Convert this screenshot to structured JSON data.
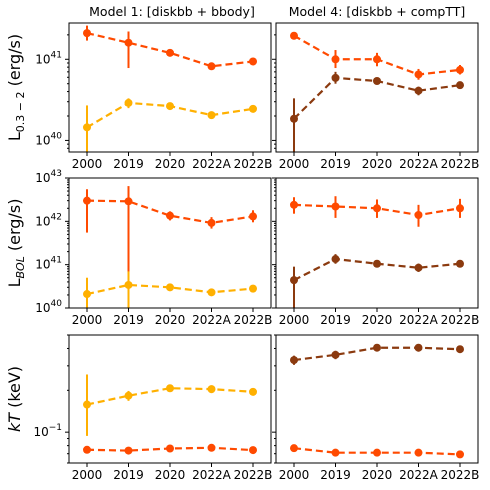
{
  "chart_data": {
    "type": "line",
    "categories": [
      "2000",
      "2019",
      "2020",
      "2022A",
      "2022B"
    ],
    "columns": [
      {
        "title": "Model 1: [diskbb + bbody]"
      },
      {
        "title": "Model 4: [diskbb + compTT]"
      }
    ],
    "rows": [
      {
        "ylabel_parts": {
          "main": "L",
          "sub": "0.3 − 2",
          "unit": " (erg/s)"
        },
        "scale": "log",
        "ylim": [
          7.2e+39,
          2.8e+41
        ],
        "ticks": [
          {
            "value": 1e+40,
            "base": "10",
            "exp": "40"
          },
          {
            "value": 1e+41,
            "base": "10",
            "exp": "41"
          }
        ]
      },
      {
        "ylabel_parts": {
          "main": "L",
          "sub": "BOL",
          "unit": " (erg/s)"
        },
        "scale": "log",
        "ylim": [
          1e+40,
          1e+43
        ],
        "ticks": [
          {
            "value": 1e+40,
            "base": "10",
            "exp": "40"
          },
          {
            "value": 1e+41,
            "base": "10",
            "exp": "41"
          },
          {
            "value": 1e+42,
            "base": "10",
            "exp": "42"
          },
          {
            "value": 1e+43,
            "base": "10",
            "exp": "43"
          }
        ]
      },
      {
        "ylabel_parts": {
          "main": "kT",
          "sub": "",
          "unit": " (keV)"
        },
        "scale": "log",
        "ylim": [
          0.06,
          0.5
        ],
        "ticks": [
          {
            "value": 0.1,
            "base": "10",
            "exp": "−1"
          }
        ]
      }
    ],
    "panels": [
      {
        "row": 0,
        "col": 0,
        "series": [
          {
            "color": "#ff4a00",
            "values": [
              2.1e+41,
              1.6e+41,
              1.2e+41,
              8.2e+40,
              9.4e+40
            ],
            "err_low": [
              1.7e+41,
              7.8e+40,
              1.1e+41,
              7.7e+40,
              8.8e+40
            ],
            "err_high": [
              2.6e+41,
              2.2e+41,
              1.3e+41,
              8.7e+40,
              1e+41
            ]
          },
          {
            "color": "#ffb000",
            "values": [
              1.45e+40,
              2.9e+40,
              2.65e+40,
              2.05e+40,
              2.45e+40
            ],
            "err_low": [
              7e+39,
              2.5e+40,
              2.55e+40,
              1.9e+40,
              2.35e+40
            ],
            "err_high": [
              2.7e+40,
              3.3e+40,
              2.75e+40,
              2.2e+40,
              2.55e+40
            ]
          }
        ]
      },
      {
        "row": 0,
        "col": 1,
        "series": [
          {
            "color": "#ff4a00",
            "values": [
              1.95e+41,
              1e+41,
              1e+41,
              6.5e+40,
              7.4e+40
            ],
            "err_low": [
              1.75e+41,
              7.8e+40,
              8.2e+40,
              5.6e+40,
              6.5e+40
            ],
            "err_high": [
              2.15e+41,
              1.3e+41,
              1.2e+41,
              7.6e+40,
              8.5e+40
            ]
          },
          {
            "color": "#8b3a0f",
            "values": [
              1.85e+40,
              5.9e+40,
              5.4e+40,
              4.1e+40,
              4.8e+40
            ],
            "err_low": [
              7e+39,
              5e+40,
              5e+40,
              3.6e+40,
              4.4e+40
            ],
            "err_high": [
              3.3e+40,
              7e+40,
              5.8e+40,
              4.6e+40,
              5.2e+40
            ]
          }
        ]
      },
      {
        "row": 1,
        "col": 0,
        "series": [
          {
            "color": "#ff4a00",
            "values": [
              3e+42,
              2.9e+42,
              1.35e+42,
              9.2e+41,
              1.3e+42
            ],
            "err_low": [
              5.5e+41,
              1e+40,
              1.05e+42,
              6.8e+41,
              9.5e+41
            ],
            "err_high": [
              5.5e+42,
              6.5e+42,
              1.7e+42,
              1.25e+42,
              1.8e+42
            ]
          },
          {
            "color": "#ffb000",
            "values": [
              2.1e+40,
              3.4e+40,
              3e+40,
              2.3e+40,
              2.8e+40
            ],
            "err_low": [
              1e+40,
              1e+40,
              2.7e+40,
              2.1e+40,
              2.5e+40
            ],
            "err_high": [
              5e+40,
              7e+40,
              3.3e+40,
              2.5e+40,
              3.1e+40
            ]
          }
        ]
      },
      {
        "row": 1,
        "col": 1,
        "series": [
          {
            "color": "#ff4a00",
            "values": [
              2.4e+42,
              2.2e+42,
              2e+42,
              1.4e+42,
              2e+42
            ],
            "err_low": [
              1.5e+42,
              1.2e+42,
              1.2e+42,
              7.5e+41,
              1.2e+42
            ],
            "err_high": [
              3.6e+42,
              3.8e+42,
              3.2e+42,
              2.4e+42,
              3.3e+42
            ]
          },
          {
            "color": "#8b3a0f",
            "values": [
              4.4e+40,
              1.35e+41,
              1.05e+41,
              8.5e+40,
              1.05e+41
            ],
            "err_low": [
              1e+40,
              1.05e+41,
              9e+40,
              6.8e+40,
              9e+40
            ],
            "err_high": [
              9e+40,
              1.75e+41,
              1.22e+41,
              1.06e+41,
              1.22e+41
            ]
          }
        ]
      },
      {
        "row": 2,
        "col": 0,
        "series": [
          {
            "color": "#ffb000",
            "values": [
              0.158,
              0.183,
              0.207,
              0.204,
              0.195
            ],
            "err_low": [
              0.094,
              0.168,
              0.197,
              0.191,
              0.185
            ],
            "err_high": [
              0.26,
              0.198,
              0.217,
              0.217,
              0.205
            ]
          },
          {
            "color": "#ff4a00",
            "values": [
              0.0747,
              0.0737,
              0.0763,
              0.0772,
              0.0743
            ],
            "err_low": [
              0.0712,
              0.0702,
              0.0743,
              0.0752,
              0.0723
            ],
            "err_high": [
              0.0782,
              0.0772,
              0.0783,
              0.0792,
              0.0763
            ]
          }
        ]
      },
      {
        "row": 2,
        "col": 1,
        "series": [
          {
            "color": "#8b3a0f",
            "values": [
              0.33,
              0.36,
              0.405,
              0.405,
              0.395
            ],
            "err_low": [
              0.305,
              0.335,
              0.385,
              0.38,
              0.375
            ],
            "err_high": [
              0.355,
              0.385,
              0.42,
              0.425,
              0.415
            ]
          },
          {
            "color": "#ff4a00",
            "values": [
              0.0767,
              0.0712,
              0.0712,
              0.0712,
              0.0692
            ],
            "err_low": [
              0.0732,
              0.0687,
              0.0692,
              0.0692,
              0.0672
            ],
            "err_high": [
              0.0802,
              0.0737,
              0.0732,
              0.0732,
              0.0712
            ]
          }
        ]
      }
    ]
  }
}
